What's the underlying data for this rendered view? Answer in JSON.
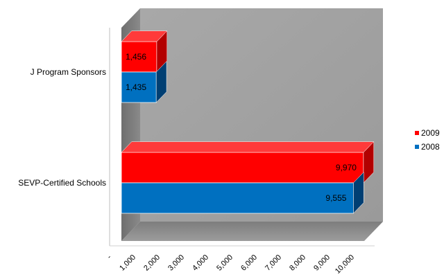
{
  "chart_data": {
    "type": "bar",
    "orientation": "horizontal",
    "style": "3d",
    "categories": [
      "J Program Sponsors",
      "SEVP-Certified Schools"
    ],
    "series": [
      {
        "name": "2009",
        "color": "#ff0000",
        "values": [
          1456,
          9970
        ],
        "labels": [
          "1,456",
          "9,970"
        ]
      },
      {
        "name": "2008",
        "color": "#0070c0",
        "values": [
          1435,
          9555
        ],
        "labels": [
          "1,435",
          "9,555"
        ]
      }
    ],
    "xlim": [
      0,
      10000
    ],
    "xticks": [
      "-",
      "1,000",
      "2,000",
      "3,000",
      "4,000",
      "5,000",
      "6,000",
      "7,000",
      "8,000",
      "9,000",
      "10,000"
    ],
    "legend": "right",
    "grid": false,
    "title": "",
    "xlabel": "",
    "ylabel": ""
  }
}
